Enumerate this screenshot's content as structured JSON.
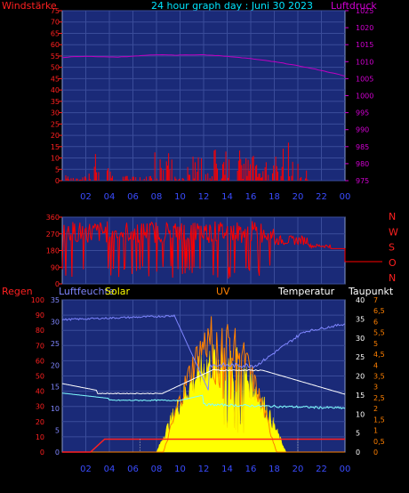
{
  "header": {
    "left_label": "Windstärke",
    "title": "24 hour graph day : Juni 30 2023",
    "right_label": "Luftdruck"
  },
  "wind_axis": [
    "0",
    "5",
    "10",
    "15",
    "20",
    "25",
    "30",
    "35",
    "40",
    "45",
    "50",
    "55",
    "60",
    "65",
    "70",
    "75"
  ],
  "pressure_axis": [
    "975",
    "980",
    "985",
    "990",
    "995",
    "1000",
    "1005",
    "1010",
    "1015",
    "1020",
    "1025"
  ],
  "hour_labels": [
    "02",
    "04",
    "06",
    "08",
    "10",
    "12",
    "14",
    "16",
    "18",
    "20",
    "22",
    "00"
  ],
  "dir_axis": [
    "0",
    "90",
    "180",
    "270",
    "360"
  ],
  "dir_letters": [
    "N",
    "W",
    "S",
    "O",
    "N"
  ],
  "bottom_header": {
    "regen": "Regen",
    "luftfeuchte": "Luftfeuchte",
    "solar": "Solar",
    "uv": "UV",
    "temperatur": "Temperatur",
    "taupunkt": "Taupunkt"
  },
  "rain_axis": [
    "0",
    "10",
    "20",
    "30",
    "40",
    "50",
    "60",
    "70",
    "80",
    "90",
    "100"
  ],
  "humid_axis": [
    "0",
    "5",
    "10",
    "15",
    "20",
    "25",
    "30",
    "35"
  ],
  "temp_axis": [
    "0",
    "5",
    "10",
    "15",
    "20",
    "25",
    "30",
    "35",
    "40"
  ],
  "uv_axis": [
    "0",
    "0,5",
    "1",
    "1,5",
    "2",
    "2,5",
    "3",
    "3,5",
    "4",
    "4,5",
    "5",
    "5,5",
    "6",
    "6,5",
    "7"
  ],
  "colors": {
    "panel_bg": "#1a2a78",
    "grid": "#3a4c9a",
    "wind": "#ff0000",
    "pressure": "#c000c0",
    "humidity": "#7f86ff",
    "temperature": "#ffffff",
    "dewpoint": "#80ffff",
    "solar": "#ffff00",
    "uv": "#ff8000",
    "rain": "#ff2020"
  }
}
